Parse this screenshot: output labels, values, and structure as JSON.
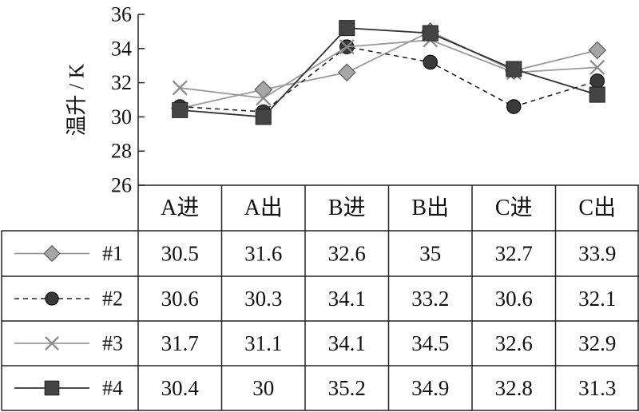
{
  "chart_data": {
    "type": "line",
    "ylabel": "温升 / K",
    "ylim": [
      26,
      36
    ],
    "y_ticks": [
      26,
      28,
      30,
      32,
      34,
      36
    ],
    "categories": [
      "A进",
      "A出",
      "B进",
      "B出",
      "C进",
      "C出"
    ],
    "series": [
      {
        "name": "#1",
        "values": [
          30.5,
          31.6,
          32.6,
          35,
          32.7,
          33.9
        ],
        "display": [
          "30.5",
          "31.6",
          "32.6",
          "35",
          "32.7",
          "33.9"
        ],
        "marker": "diamond-icon",
        "line": "solid",
        "color": "#9a9a9a"
      },
      {
        "name": "#2",
        "values": [
          30.6,
          30.3,
          34.1,
          33.2,
          30.6,
          32.1
        ],
        "display": [
          "30.6",
          "30.3",
          "34.1",
          "33.2",
          "30.6",
          "32.1"
        ],
        "marker": "circle-icon",
        "line": "dashed",
        "color": "#222222"
      },
      {
        "name": "#3",
        "values": [
          31.7,
          31.1,
          34.1,
          34.5,
          32.6,
          32.9
        ],
        "display": [
          "31.7",
          "31.1",
          "34.1",
          "34.5",
          "32.6",
          "32.9"
        ],
        "marker": "x-icon",
        "line": "solid",
        "color": "#9a9a9a"
      },
      {
        "name": "#4",
        "values": [
          30.4,
          30,
          35.2,
          34.9,
          32.8,
          31.3
        ],
        "display": [
          "30.4",
          "30",
          "35.2",
          "34.9",
          "32.8",
          "31.3"
        ],
        "marker": "square-icon",
        "line": "solid",
        "color": "#333333"
      }
    ],
    "grid": false,
    "legend": "data-table"
  }
}
